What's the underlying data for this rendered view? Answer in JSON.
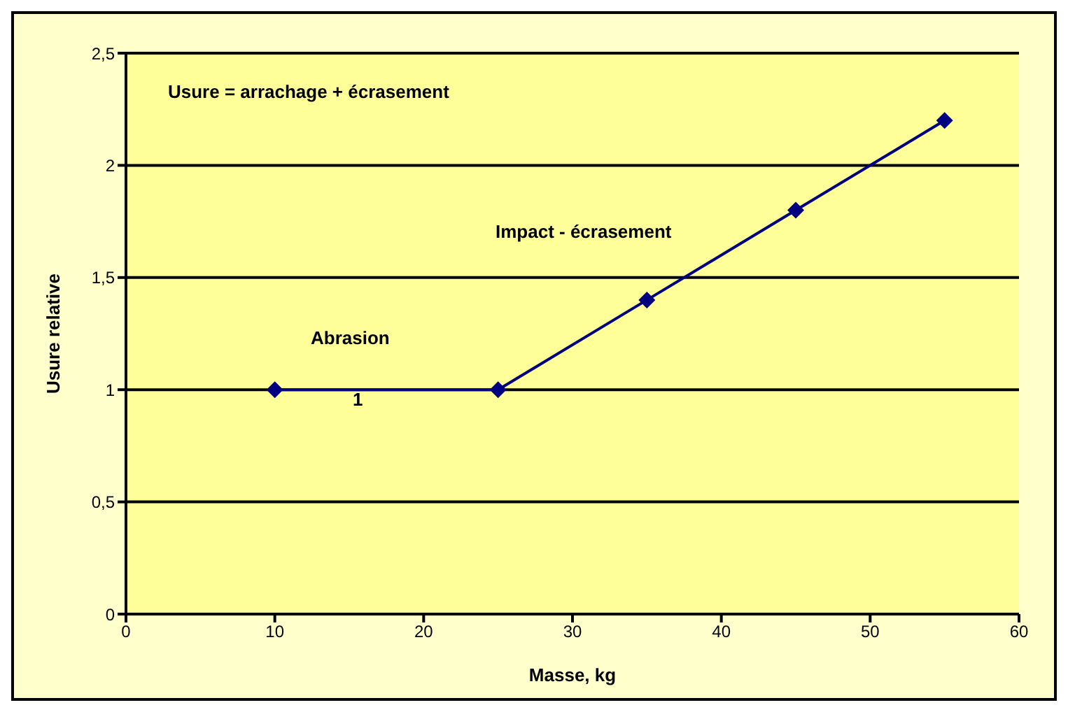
{
  "chart_data": {
    "type": "line",
    "xlabel": "Masse, kg",
    "ylabel": "Usure relative",
    "x": [
      10,
      25,
      35,
      45,
      55
    ],
    "series": [
      {
        "color": "#000080",
        "values": [
          1,
          1,
          1.4,
          1.8,
          2.2
        ]
      }
    ],
    "xlim": [
      0,
      60
    ],
    "xticks": [
      0,
      10,
      20,
      30,
      40,
      50,
      60
    ],
    "ylim": [
      0,
      2.5
    ],
    "yticks": [
      0,
      {
        "value": 0.5,
        "label": "0,5"
      },
      1,
      {
        "value": 1.5,
        "label": "1,5"
      },
      2,
      {
        "value": 2.5,
        "label": "2,5"
      }
    ],
    "grid": "y",
    "marker": "diamond",
    "line_style": "solid",
    "annotations": [
      "Usure = arrachage + écrasement",
      "Impact - écrasement",
      "Abrasion",
      "1"
    ]
  }
}
